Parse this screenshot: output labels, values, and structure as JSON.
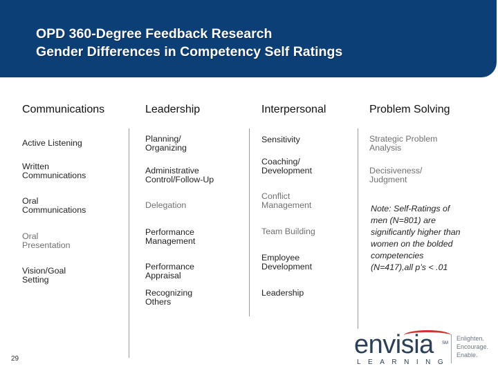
{
  "title": {
    "line1": "OPD 360-Degree Feedback Research",
    "line2": "Gender Differences in Competency Self Ratings"
  },
  "columns": [
    {
      "header": "Communications",
      "items": [
        {
          "line1": "Active Listening",
          "line2": ""
        },
        {
          "line1": "Written",
          "line2": "Communications"
        },
        {
          "line1": "Oral",
          "line2": "Communications"
        },
        {
          "line1": "Oral",
          "line2": "Presentation"
        },
        {
          "line1": "Vision/Goal",
          "line2": "Setting"
        }
      ]
    },
    {
      "header": "Leadership",
      "items": [
        {
          "line1": "Planning/",
          "line2": "Organizing"
        },
        {
          "line1": "Administrative",
          "line2": "Control/Follow-Up"
        },
        {
          "line1": "Delegation",
          "line2": ""
        },
        {
          "line1": "Performance",
          "line2": "Management"
        },
        {
          "line1": "Performance",
          "line2": "Appraisal"
        },
        {
          "line1": "Recognizing",
          "line2": "Others"
        }
      ]
    },
    {
      "header": "Interpersonal",
      "items": [
        {
          "line1": "Sensitivity",
          "line2": ""
        },
        {
          "line1": "Coaching/",
          "line2": "Development"
        },
        {
          "line1": "Conflict",
          "line2": "Management"
        },
        {
          "line1": "Team Building",
          "line2": ""
        },
        {
          "line1": "Employee",
          "line2": "Development"
        },
        {
          "line1": "Leadership",
          "line2": ""
        }
      ]
    },
    {
      "header": "Problem Solving",
      "items": [
        {
          "line1": "Strategic Problem",
          "line2": "Analysis"
        },
        {
          "line1": "Decisiveness/",
          "line2": "Judgment"
        }
      ]
    }
  ],
  "note": {
    "l1": "Note: Self-Ratings of",
    "l2": "men (N=801) are",
    "l3": "significantly higher than",
    "l4": "women on the bolded",
    "l5": "competencies",
    "l6": "(N=417),all p’s < .01"
  },
  "page_number": "29",
  "logo": {
    "wordmark": "envisia",
    "trademark": "SM",
    "subtitle": "LEARNING",
    "tagline": [
      "Enlighten.",
      "Encourage.",
      "Enable."
    ]
  },
  "colors": {
    "banner": "#0d3f77",
    "bolded_item": "#222222",
    "regular_item": "#707070",
    "logo_accent": "#d32f2f"
  }
}
